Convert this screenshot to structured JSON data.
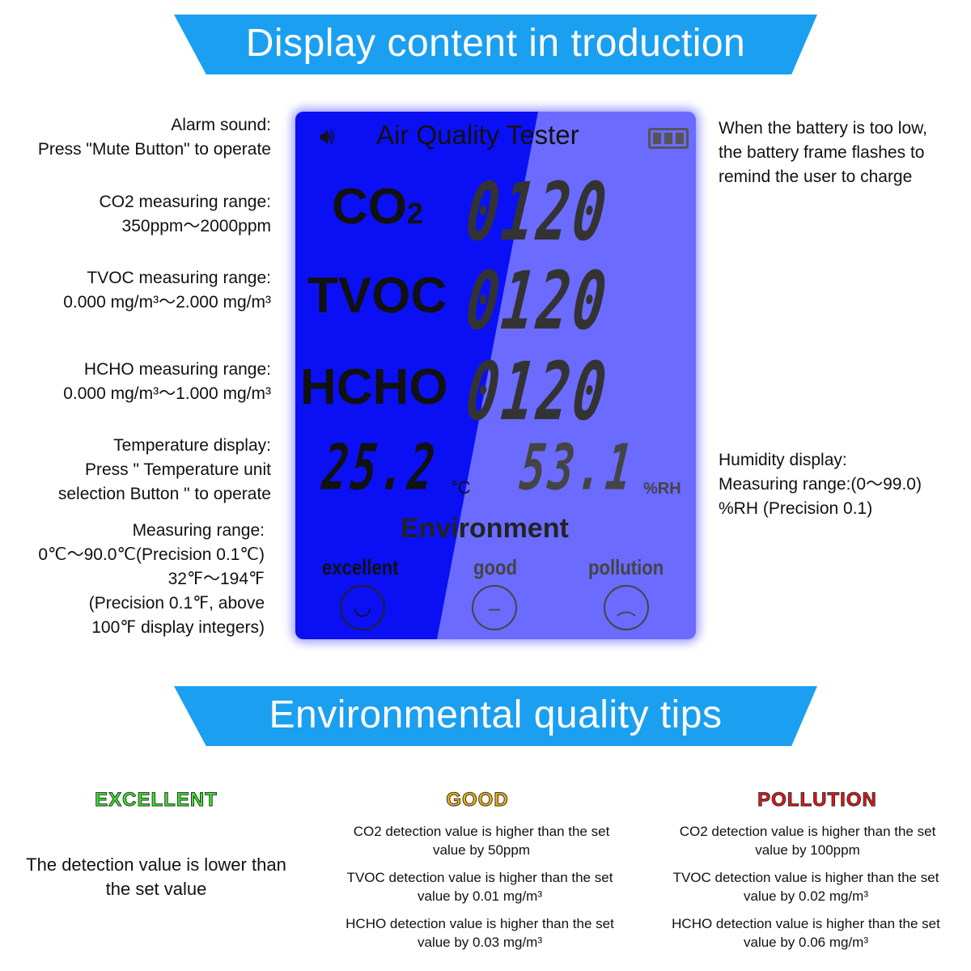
{
  "banner1": "Display content in troduction",
  "banner2": "Environmental quality tips",
  "left_notes": {
    "alarm": [
      "Alarm sound:",
      "Press \"Mute Button\" to operate"
    ],
    "co2": [
      "CO2 measuring range:",
      "350ppm～2000ppm"
    ],
    "tvoc": [
      "TVOC measuring range:",
      "0.000 mg/m³～2.000 mg/m³"
    ],
    "hcho": [
      "HCHO measuring range:",
      "0.000 mg/m³～1.000 mg/m³"
    ],
    "temp": [
      "Temperature display:",
      "Press \" Temperature unit",
      "selection Button \" to operate"
    ],
    "range": [
      "Measuring range:",
      "0℃～90.0℃(Precision 0.1℃)",
      "32℉～194℉",
      "(Precision 0.1℉, above",
      "100℉ display integers)"
    ]
  },
  "right_notes": {
    "battery": [
      "When the battery is too low,",
      "the battery frame flashes to",
      "remind the user to charge"
    ],
    "humidity": [
      "Humidity display:",
      "Measuring range:(0～99.0)",
      "%RH (Precision 0.1)"
    ]
  },
  "lcd": {
    "title": "Air Quality Tester",
    "co2_label": "CO",
    "co2_sub": "2",
    "tvoc_label": "TVOC",
    "hcho_label": "HCHO",
    "co2_value": "0120",
    "tvoc_value": "0120",
    "hcho_value": "0120",
    "temperature": "25.2",
    "temp_unit": "°C",
    "humidity": "53.1",
    "humidity_unit": "%RH",
    "environment": "Environment",
    "levels": [
      "excellent",
      "good",
      "pollution"
    ],
    "colors": {
      "backlight": "#0b10f4",
      "panel": "#6b6bff"
    }
  },
  "tips": {
    "excellent": {
      "title": "EXCELLENT",
      "color": "#33ee22",
      "text": [
        "The detection value is lower than",
        "the set value"
      ]
    },
    "good": {
      "title": "GOOD",
      "color": "#f5b400",
      "items": [
        [
          "CO2 detection value is higher than the set",
          "value by 50ppm"
        ],
        [
          "TVOC detection value is higher than the set",
          "value by 0.01 mg/m³"
        ],
        [
          "HCHO detection value is higher than the set",
          "value by 0.03 mg/m³"
        ]
      ]
    },
    "pollution": {
      "title": "POLLUTION",
      "color": "#ee1111",
      "items": [
        [
          "CO2 detection value is higher than the set",
          "value by 100ppm"
        ],
        [
          "TVOC detection value is higher than the set",
          "value by 0.02 mg/m³"
        ],
        [
          "HCHO detection value is higher than the set",
          "value by 0.06 mg/m³"
        ]
      ]
    }
  }
}
